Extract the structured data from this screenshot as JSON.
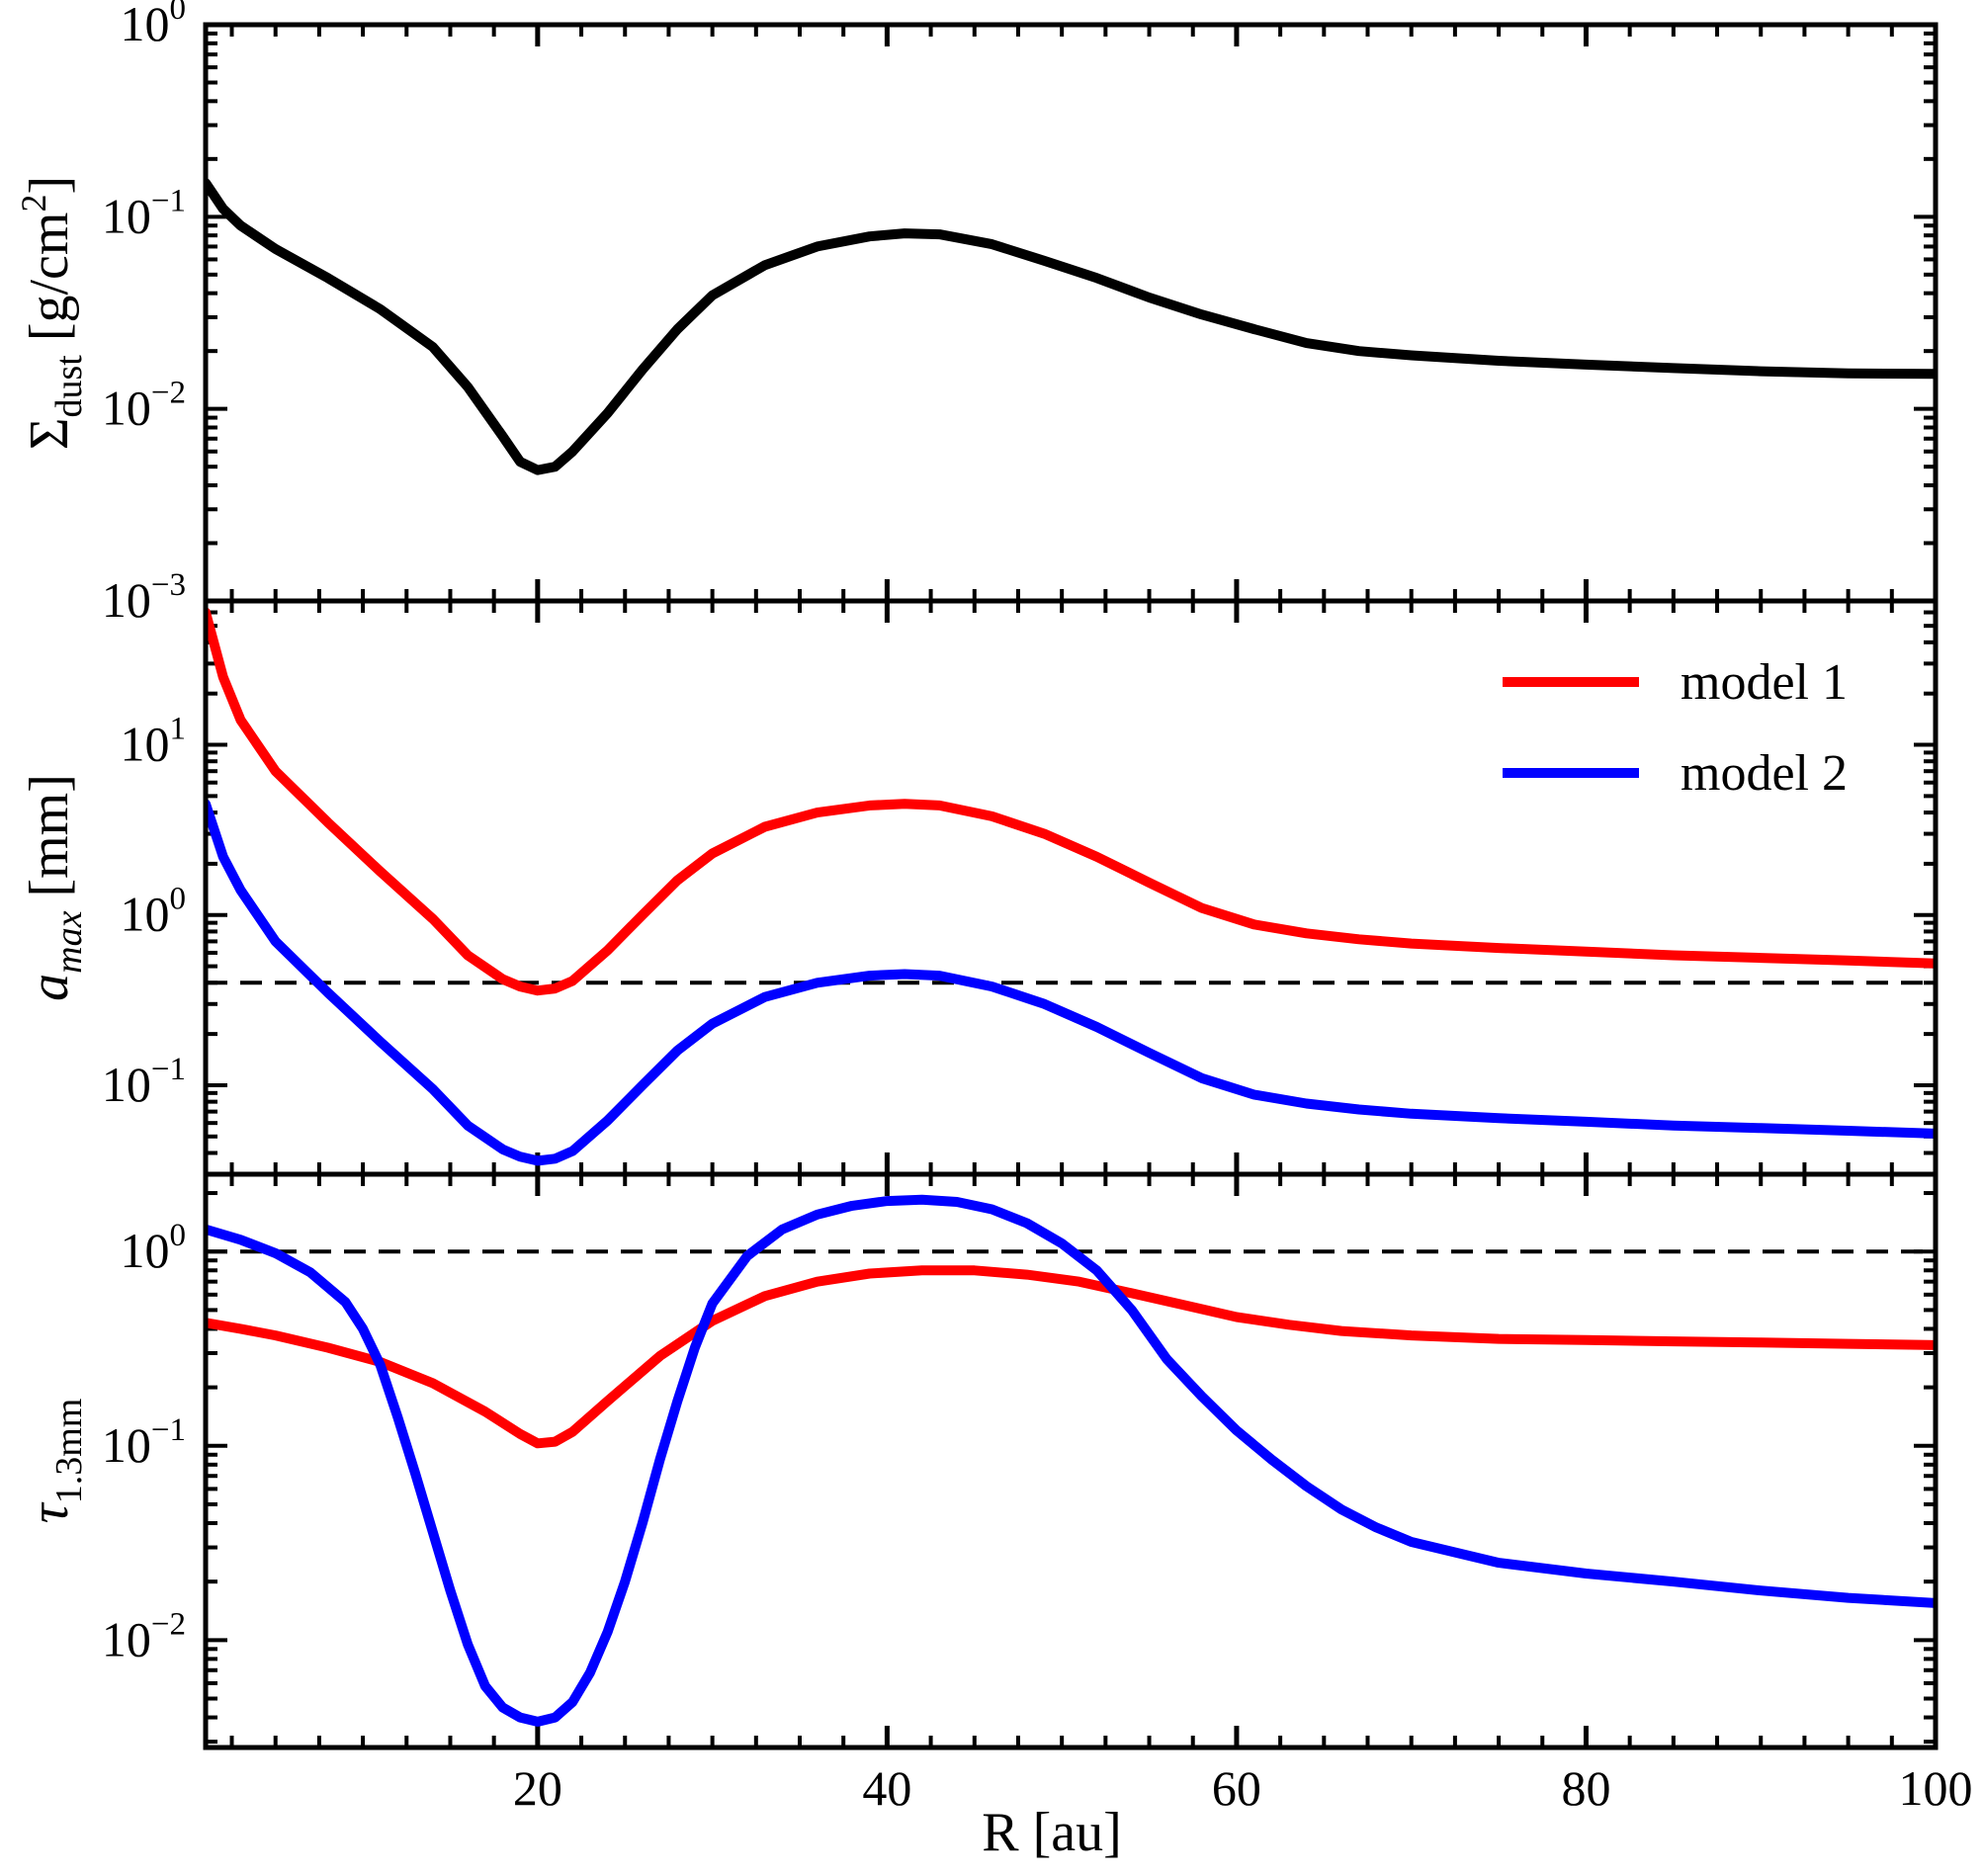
{
  "chart_data": {
    "type": "line",
    "layout": "three vertically stacked panels sharing the x-axis",
    "xlabel": "R [au]",
    "xlim": [
      1,
      100
    ],
    "xticks": [
      "20",
      "40",
      "60",
      "80",
      "100"
    ],
    "colors": {
      "model1": "#ff0000",
      "model2": "#0000ff",
      "sigma": "#000000",
      "reference": "#000000"
    },
    "panels": [
      {
        "ylabel_main": "Σ",
        "ylabel_sub": "dust",
        "ylabel_unit": "[g/cm",
        "ylabel_unit_sup": "2",
        "ylabel_close": "]",
        "yscale": "log",
        "ylim": [
          0.001,
          1
        ],
        "yticks": [
          {
            "base": "10",
            "exp": "0",
            "value": 1
          },
          {
            "base": "10",
            "exp": "−1",
            "value": 0.1
          },
          {
            "base": "10",
            "exp": "−2",
            "value": 0.01
          },
          {
            "base": "10",
            "exp": "−3",
            "value": 0.001
          }
        ],
        "series": [
          {
            "color": "#000000",
            "x": [
              1,
              2,
              3,
              5,
              8,
              11,
              14,
              16,
              18,
              19,
              20,
              21,
              22,
              24,
              26,
              28,
              30,
              33,
              36,
              39,
              41,
              43,
              46,
              49,
              52,
              55,
              58,
              61,
              64,
              67,
              70,
              75,
              80,
              85,
              90,
              95,
              100
            ],
            "y": [
              0.15,
              0.11,
              0.09,
              0.068,
              0.048,
              0.033,
              0.021,
              0.013,
              0.0072,
              0.0053,
              0.0048,
              0.005,
              0.006,
              0.0095,
              0.016,
              0.026,
              0.039,
              0.056,
              0.07,
              0.079,
              0.082,
              0.081,
              0.072,
              0.059,
              0.048,
              0.038,
              0.031,
              0.026,
              0.022,
              0.02,
              0.019,
              0.0178,
              0.017,
              0.0163,
              0.0157,
              0.0153,
              0.0152
            ]
          }
        ]
      },
      {
        "ylabel_main": "a",
        "ylabel_sub": "max",
        "ylabel_unit": "[mm]",
        "yscale": "log",
        "ylim": [
          0.03,
          70
        ],
        "yticks": [
          {
            "base": "10",
            "exp": "1",
            "value": 10
          },
          {
            "base": "10",
            "exp": "0",
            "value": 1
          },
          {
            "base": "10",
            "exp": "−1",
            "value": 0.1
          }
        ],
        "reference_line": {
          "y": 0.4,
          "style": "dashed"
        },
        "legend": {
          "position": "top-right",
          "entries": [
            "model 1",
            "model 2"
          ]
        },
        "series": [
          {
            "name": "model 1",
            "color": "#ff0000",
            "x": [
              1,
              2,
              3,
              5,
              8,
              11,
              14,
              16,
              18,
              19,
              20,
              21,
              22,
              24,
              26,
              28,
              30,
              33,
              36,
              39,
              41,
              43,
              46,
              49,
              52,
              55,
              58,
              61,
              64,
              67,
              70,
              75,
              80,
              85,
              90,
              95,
              100
            ],
            "y": [
              60,
              25,
              14,
              7,
              3.5,
              1.8,
              0.95,
              0.58,
              0.42,
              0.38,
              0.36,
              0.37,
              0.41,
              0.62,
              1.0,
              1.6,
              2.3,
              3.3,
              4.0,
              4.4,
              4.5,
              4.4,
              3.8,
              3.0,
              2.2,
              1.55,
              1.1,
              0.88,
              0.78,
              0.72,
              0.68,
              0.64,
              0.61,
              0.58,
              0.56,
              0.54,
              0.52
            ]
          },
          {
            "name": "model 2",
            "color": "#0000ff",
            "x": [
              1,
              2,
              3,
              5,
              8,
              11,
              14,
              16,
              18,
              19,
              20,
              21,
              22,
              24,
              26,
              28,
              30,
              33,
              36,
              39,
              41,
              43,
              46,
              49,
              52,
              55,
              58,
              61,
              64,
              67,
              70,
              75,
              80,
              85,
              90,
              95,
              100
            ],
            "y": [
              4.5,
              2.2,
              1.4,
              0.7,
              0.35,
              0.18,
              0.095,
              0.058,
              0.042,
              0.038,
              0.036,
              0.037,
              0.041,
              0.062,
              0.1,
              0.16,
              0.23,
              0.33,
              0.4,
              0.44,
              0.45,
              0.44,
              0.38,
              0.3,
              0.22,
              0.155,
              0.11,
              0.088,
              0.078,
              0.072,
              0.068,
              0.064,
              0.061,
              0.058,
              0.056,
              0.054,
              0.052
            ]
          }
        ]
      },
      {
        "ylabel_main": "τ",
        "ylabel_sub": "1.3mm",
        "ylabel_unit": "",
        "yscale": "log",
        "ylim": [
          0.0028,
          2.5
        ],
        "yticks": [
          {
            "base": "10",
            "exp": "0",
            "value": 1
          },
          {
            "base": "10",
            "exp": "−1",
            "value": 0.1
          },
          {
            "base": "10",
            "exp": "−2",
            "value": 0.01
          }
        ],
        "reference_line": {
          "y": 1.0,
          "style": "dashed"
        },
        "series": [
          {
            "name": "model 1",
            "color": "#ff0000",
            "x": [
              1,
              3,
              5,
              8,
              11,
              14,
              17,
              19,
              20,
              21,
              22,
              24,
              27,
              30,
              33,
              36,
              39,
              42,
              45,
              48,
              51,
              54,
              57,
              60,
              63,
              66,
              70,
              75,
              80,
              85,
              90,
              95,
              100
            ],
            "y": [
              0.43,
              0.4,
              0.37,
              0.32,
              0.27,
              0.21,
              0.15,
              0.115,
              0.103,
              0.105,
              0.118,
              0.17,
              0.29,
              0.44,
              0.59,
              0.7,
              0.77,
              0.8,
              0.8,
              0.76,
              0.7,
              0.61,
              0.53,
              0.46,
              0.42,
              0.39,
              0.37,
              0.355,
              0.35,
              0.345,
              0.34,
              0.335,
              0.33
            ]
          },
          {
            "name": "model 2",
            "color": "#0000ff",
            "x": [
              1,
              3,
              5,
              7,
              9,
              10,
              11,
              12,
              13,
              14,
              15,
              16,
              17,
              18,
              19,
              20,
              21,
              22,
              23,
              24,
              25,
              26,
              27,
              28,
              29,
              30,
              32,
              34,
              36,
              38,
              40,
              42,
              44,
              46,
              48,
              50,
              52,
              54,
              56,
              58,
              60,
              62,
              64,
              66,
              68,
              70,
              75,
              80,
              85,
              90,
              95,
              100
            ],
            "y": [
              1.3,
              1.15,
              0.98,
              0.78,
              0.55,
              0.4,
              0.26,
              0.14,
              0.072,
              0.036,
              0.018,
              0.0095,
              0.0058,
              0.0045,
              0.004,
              0.0038,
              0.004,
              0.0048,
              0.0068,
              0.011,
              0.02,
              0.04,
              0.085,
              0.17,
              0.32,
              0.54,
              0.95,
              1.3,
              1.55,
              1.72,
              1.82,
              1.85,
              1.8,
              1.65,
              1.4,
              1.1,
              0.8,
              0.5,
              0.28,
              0.18,
              0.12,
              0.085,
              0.062,
              0.047,
              0.038,
              0.032,
              0.025,
              0.022,
              0.02,
              0.018,
              0.0165,
              0.0155
            ]
          }
        ]
      }
    ]
  }
}
